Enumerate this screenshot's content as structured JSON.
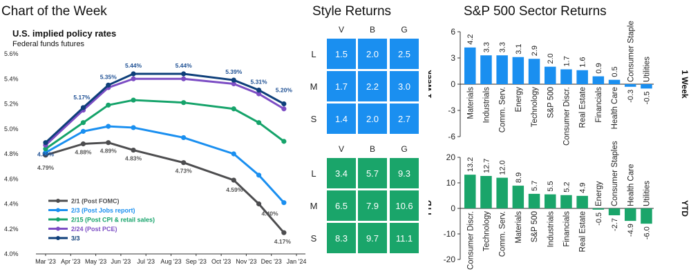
{
  "titles": {
    "chart_of_week": "Chart of the Week",
    "style_returns": "Style Returns",
    "sector_returns": "S&P 500 Sector Returns",
    "policy_title": "U.S. implied policy rates",
    "policy_subtitle": "Federal funds futures"
  },
  "colors": {
    "style_1w": "#1a8ff0",
    "style_ytd": "#1aa56a",
    "bar_blue": "#1a8ff0",
    "bar_green": "#1aa56a"
  },
  "chart_data": [
    {
      "id": "policy_rates",
      "type": "line",
      "title": "U.S. implied policy rates",
      "subtitle": "Federal funds futures",
      "x": [
        "Mar '23",
        "Apr '23",
        "May '23",
        "Jun '23",
        "Jul '23",
        "Aug '23",
        "Sep '23",
        "Oct '23",
        "Nov '23",
        "Dec '23",
        "Jan '24"
      ],
      "ylim": [
        4.0,
        5.6
      ],
      "yticks": [
        "4.0%",
        "4.2%",
        "4.4%",
        "4.6%",
        "4.8%",
        "5.0%",
        "5.2%",
        "5.4%",
        "5.6%"
      ],
      "legend_position": "bottom-left",
      "series": [
        {
          "name": "2/1 (Post FOMC)",
          "color": "#4d4d4f",
          "x": [
            0,
            1.5,
            2.5,
            3.5,
            5.5,
            7.5,
            8.5,
            9.5
          ],
          "values": [
            4.79,
            4.88,
            4.89,
            4.83,
            4.73,
            4.59,
            4.4,
            4.17
          ]
        },
        {
          "name": "2/3 (Post Jobs report)",
          "color": "#1a8ff0",
          "x": [
            0,
            1.5,
            2.5,
            3.5,
            5.5,
            7.5,
            8.5,
            9.5
          ],
          "values": [
            4.81,
            4.98,
            5.02,
            5.01,
            4.93,
            4.8,
            4.63,
            4.41
          ]
        },
        {
          "name": "2/15 (Post CPI & retail sales)",
          "color": "#15a36a",
          "x": [
            0,
            1.5,
            2.5,
            3.5,
            5.5,
            7.5,
            8.5,
            9.5
          ],
          "values": [
            4.84,
            5.05,
            5.19,
            5.23,
            5.21,
            5.16,
            5.05,
            4.9
          ]
        },
        {
          "name": "2/24 (Post PCE)",
          "color": "#7c4dc4",
          "x": [
            0,
            1.5,
            2.5,
            3.5,
            5.5,
            7.5,
            8.5,
            9.5
          ],
          "values": [
            4.87,
            5.15,
            5.33,
            5.4,
            5.4,
            5.36,
            5.28,
            5.16
          ]
        },
        {
          "name": "3/3",
          "color": "#0e3f7a",
          "x": [
            0,
            1.5,
            2.5,
            3.5,
            5.5,
            7.5,
            8.5,
            9.5
          ],
          "values": [
            4.89,
            5.17,
            5.35,
            5.44,
            5.44,
            5.39,
            5.31,
            5.2
          ]
        }
      ],
      "annotations_top": [
        "4.89%",
        "5.17%",
        "5.35%",
        "5.44%",
        "5.44%",
        "5.39%",
        "5.31%",
        "5.20%"
      ],
      "annotations_bottom": [
        "4.79%",
        "4.88%",
        "4.89%",
        "4.83%",
        "4.73%",
        "4.59%",
        "4.40%",
        "4.17%"
      ]
    },
    {
      "id": "style_1w",
      "type": "heatmap",
      "columns": [
        "V",
        "B",
        "G"
      ],
      "rows": [
        "L",
        "M",
        "S"
      ],
      "values": [
        [
          "1.5",
          "2.0",
          "2.5"
        ],
        [
          "1.7",
          "2.2",
          "3.0"
        ],
        [
          "1.4",
          "2.0",
          "2.7"
        ]
      ]
    },
    {
      "id": "style_ytd",
      "type": "heatmap",
      "columns": [
        "V",
        "B",
        "G"
      ],
      "rows": [
        "L",
        "M",
        "S"
      ],
      "values": [
        [
          "3.4",
          "5.7",
          "9.3"
        ],
        [
          "6.5",
          "7.9",
          "10.6"
        ],
        [
          "8.3",
          "9.7",
          "11.1"
        ]
      ]
    },
    {
      "id": "sector_1w",
      "type": "bar",
      "side_label": "1 Week",
      "ylim": [
        -6,
        6
      ],
      "yticks": [
        "6",
        "3",
        "0",
        "-3",
        "-6"
      ],
      "categories": [
        "Materials",
        "Industrials",
        "Comm. Serv.",
        "Energy",
        "Technology",
        "S&P 500",
        "Consumer Discr.",
        "Real Estate",
        "Financials",
        "Health Care",
        "Consumer Staples",
        "Utilities"
      ],
      "values": [
        4.2,
        3.3,
        3.3,
        3.1,
        2.9,
        2.0,
        1.7,
        1.6,
        0.9,
        0.5,
        -0.3,
        -0.5
      ],
      "labels": [
        "4.2",
        "3.3",
        "3.3",
        "3.1",
        "2.9",
        "2.0",
        "1.7",
        "1.6",
        "0.9",
        "0.5",
        "-0.3",
        "-0.5"
      ]
    },
    {
      "id": "sector_ytd",
      "type": "bar",
      "side_label": "YTD",
      "ylim": [
        -20,
        20
      ],
      "yticks": [
        "20",
        "10",
        "0",
        "-10",
        "-20"
      ],
      "categories": [
        "Consumer Discr.",
        "Technology",
        "Comm. Serv.",
        "Materials",
        "S&P 500",
        "Industrials",
        "Financials",
        "Real Estate",
        "Energy",
        "Consumer Staples",
        "Health Care",
        "Utilities"
      ],
      "values": [
        13.2,
        12.7,
        12.0,
        8.9,
        5.7,
        5.5,
        5.2,
        4.9,
        -0.5,
        -2.7,
        -4.9,
        -6.0
      ],
      "labels": [
        "13.2",
        "12.7",
        "12.0",
        "8.9",
        "5.7",
        "5.5",
        "5.2",
        "4.9",
        "-0.5",
        "-2.7",
        "-4.9",
        "-6.0"
      ]
    }
  ]
}
